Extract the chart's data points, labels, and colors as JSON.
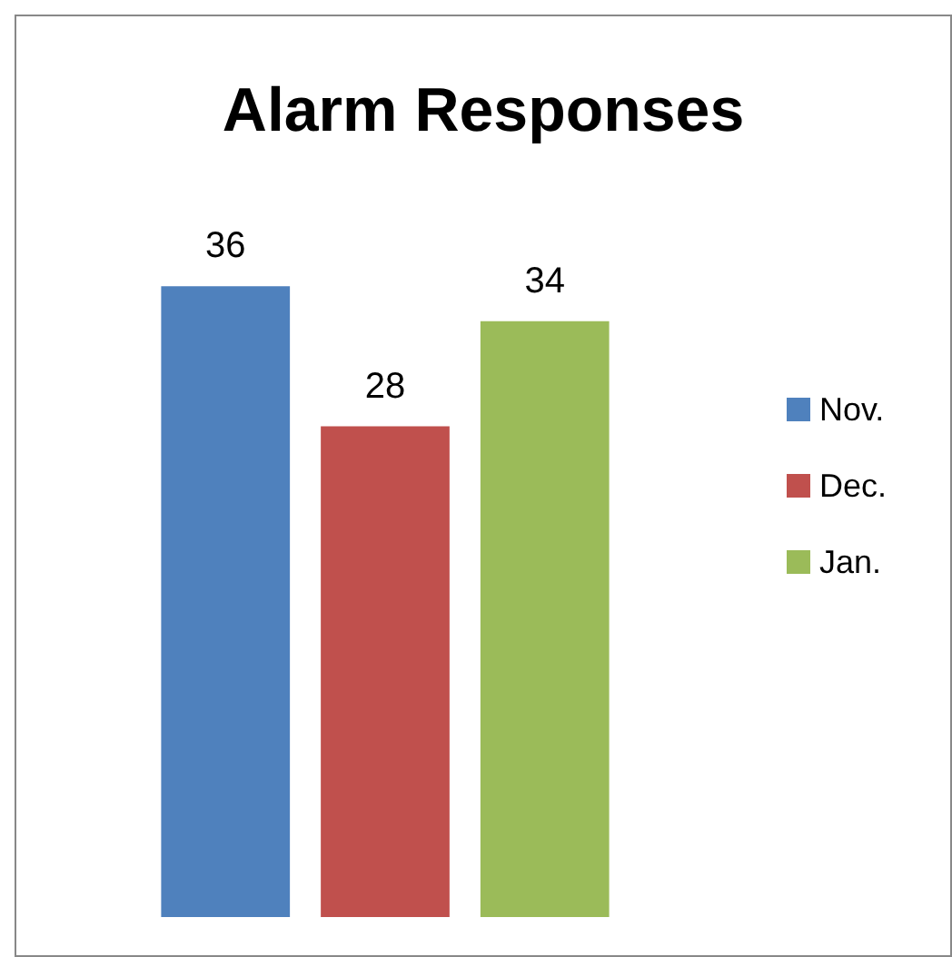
{
  "chart_data": {
    "type": "bar",
    "title": "Alarm Responses",
    "categories": [
      null
    ],
    "series": [
      {
        "name": "Nov.",
        "color": "#4f81bd",
        "values": [
          36
        ]
      },
      {
        "name": "Dec.",
        "color": "#c0504d",
        "values": [
          28
        ]
      },
      {
        "name": "Jan.",
        "color": "#9bbb59",
        "values": [
          34
        ]
      }
    ],
    "data_labels": true,
    "legend": "right",
    "grid": false
  }
}
